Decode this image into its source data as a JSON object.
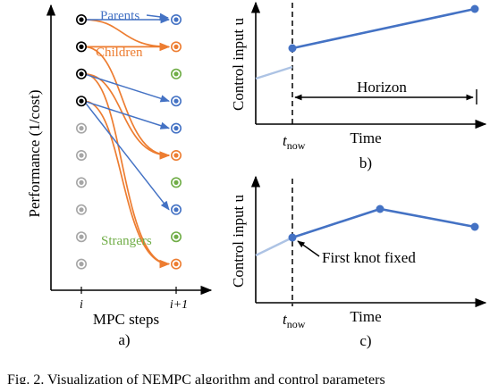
{
  "panel_a": {
    "ylabel": "Performance (1/cost)",
    "xlabel": "MPC steps",
    "tick_left": "i",
    "tick_right": "i+1",
    "panel_label": "a)",
    "legend": {
      "parents": "Parents",
      "children": "Children",
      "strangers": "Strangers"
    },
    "colors": {
      "parents": "#4472c4",
      "children": "#ed7d31",
      "strangers": "#70ad47",
      "old": "#a6a6a6",
      "elite": "#000000"
    },
    "left_column": [
      "elite",
      "elite",
      "elite",
      "elite",
      "old",
      "old",
      "old",
      "old",
      "old",
      "old"
    ],
    "right_column": [
      "parent",
      "child",
      "stranger",
      "parent",
      "parent",
      "child",
      "stranger",
      "parent",
      "stranger",
      "child"
    ],
    "parent_links": [
      [
        0,
        0
      ],
      [
        2,
        3
      ],
      [
        3,
        4
      ],
      [
        3,
        7
      ]
    ],
    "child_links": [
      [
        0,
        1
      ],
      [
        1,
        1
      ],
      [
        1,
        5
      ],
      [
        2,
        5
      ],
      [
        2,
        9
      ],
      [
        3,
        9
      ]
    ]
  },
  "panel_b": {
    "ylabel": "Control input u",
    "xlabel": "Time",
    "tnow": "t",
    "tnow_sub": "now",
    "horizon_label": "Horizon",
    "panel_label": "b)"
  },
  "panel_c": {
    "ylabel": "Control input u",
    "xlabel": "Time",
    "tnow": "t",
    "tnow_sub": "now",
    "knot_label": "First knot fixed",
    "panel_label": "c)"
  },
  "caption_fragment": "Fig. 2.   Visualization of NEMPC algorithm and control parameters"
}
